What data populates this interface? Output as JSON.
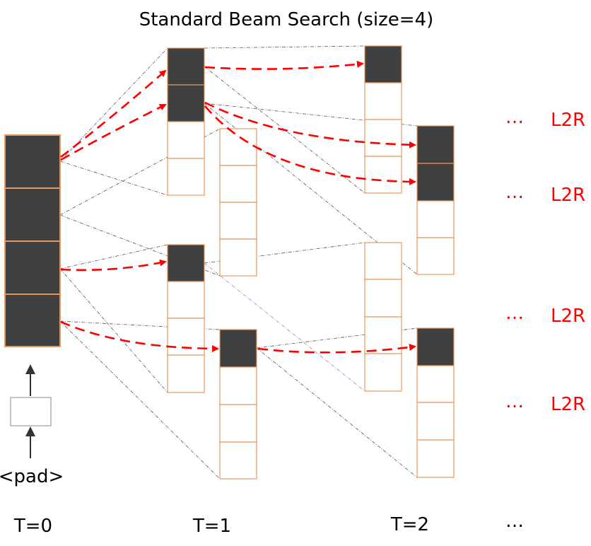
{
  "title": "Standard  Beam Search (size=4)",
  "input_token": "<pad>",
  "time_labels": [
    "T=0",
    "T=1",
    "T=2",
    "…"
  ],
  "right_labels": [
    {
      "dots": "…",
      "text": "L2R"
    },
    {
      "dots": "…",
      "text": "L2R"
    },
    {
      "dots": "…",
      "text": "L2R"
    },
    {
      "dots": "…",
      "text": "L2R"
    }
  ],
  "colors": {
    "selected_cell": "#404040",
    "cell_border": "#e8965a",
    "arrow": "#ff0000",
    "dashed_line": "#555555",
    "label": "#ff0000"
  }
}
